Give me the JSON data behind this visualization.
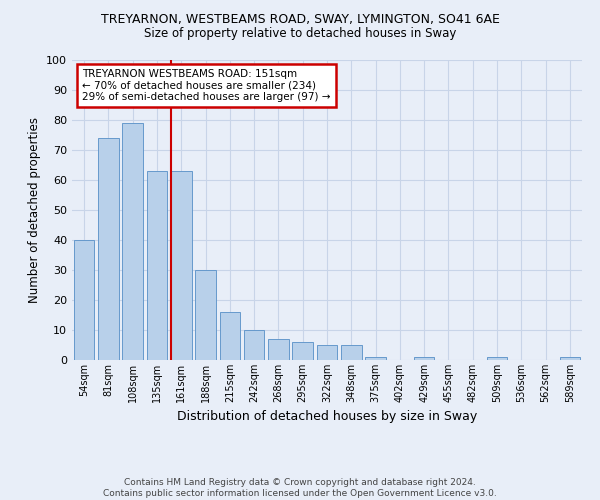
{
  "title": "TREYARNON, WESTBEAMS ROAD, SWAY, LYMINGTON, SO41 6AE",
  "subtitle": "Size of property relative to detached houses in Sway",
  "xlabel": "Distribution of detached houses by size in Sway",
  "ylabel": "Number of detached properties",
  "categories": [
    "54sqm",
    "81sqm",
    "108sqm",
    "135sqm",
    "161sqm",
    "188sqm",
    "215sqm",
    "242sqm",
    "268sqm",
    "295sqm",
    "322sqm",
    "348sqm",
    "375sqm",
    "402sqm",
    "429sqm",
    "455sqm",
    "482sqm",
    "509sqm",
    "536sqm",
    "562sqm",
    "589sqm"
  ],
  "values": [
    40,
    74,
    79,
    63,
    63,
    30,
    16,
    10,
    7,
    6,
    5,
    5,
    1,
    0,
    1,
    0,
    0,
    1,
    0,
    0,
    1
  ],
  "bar_color": "#b8d0ea",
  "bar_edge_color": "#6699cc",
  "marker_label": "TREYARNON WESTBEAMS ROAD: 151sqm\n← 70% of detached houses are smaller (234)\n29% of semi-detached houses are larger (97) →",
  "annotation_box_color": "#ffffff",
  "annotation_box_edge_color": "#cc0000",
  "vline_color": "#cc0000",
  "vline_x_index": 4,
  "ylim": [
    0,
    100
  ],
  "yticks": [
    0,
    10,
    20,
    30,
    40,
    50,
    60,
    70,
    80,
    90,
    100
  ],
  "grid_color": "#c8d4e8",
  "background_color": "#e8eef8",
  "footer": "Contains HM Land Registry data © Crown copyright and database right 2024.\nContains public sector information licensed under the Open Government Licence v3.0."
}
